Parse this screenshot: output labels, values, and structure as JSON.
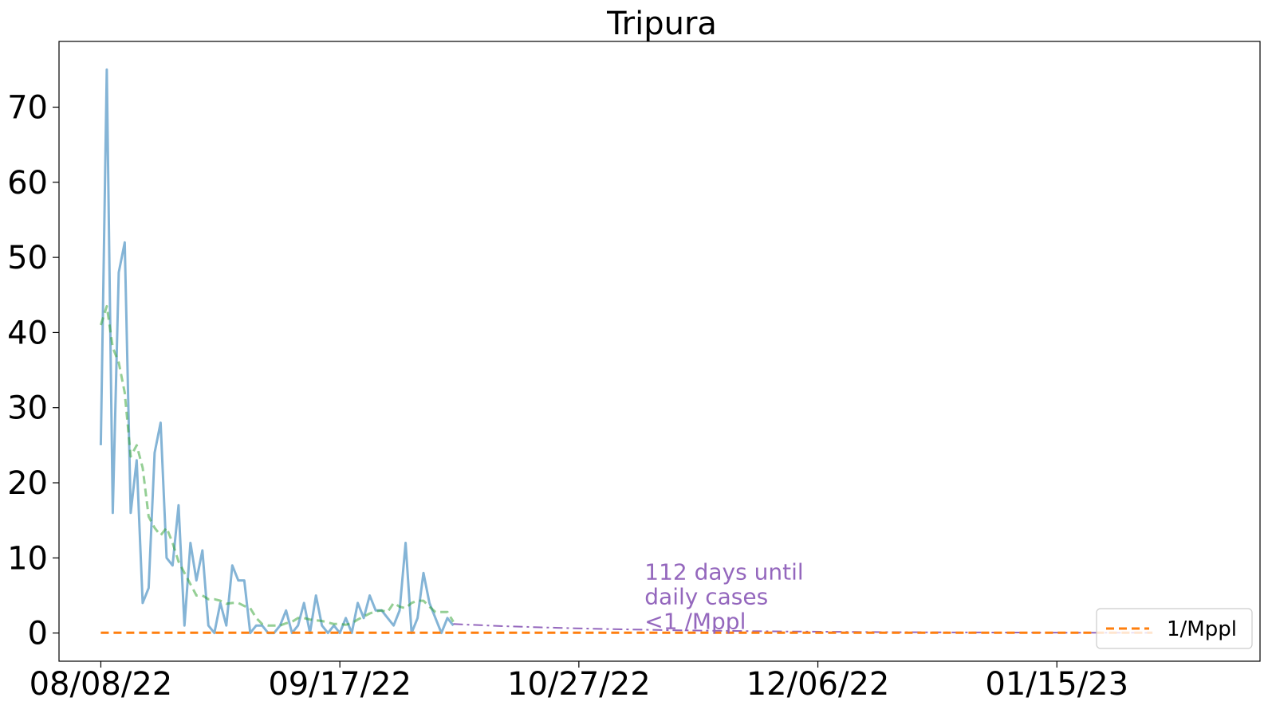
{
  "chart_data": {
    "type": "line",
    "title": "Tripura",
    "xlabel": "",
    "ylabel": "",
    "x_start": "2022-08-08",
    "xlim": [
      "2022-08-01",
      "2023-02-18"
    ],
    "ylim": [
      -3.75,
      78.75
    ],
    "yticks": [
      0,
      10,
      20,
      30,
      40,
      50,
      60,
      70
    ],
    "xticks": [
      "08/08/22",
      "09/17/22",
      "10/27/22",
      "12/06/22",
      "01/15/23"
    ],
    "grid": false,
    "legend": {
      "position": "lower-right",
      "entries": [
        "1/Mppl"
      ]
    },
    "series": [
      {
        "key": "daily",
        "color": "#1f77b4",
        "style": "solid",
        "values": [
          25,
          75,
          16,
          48,
          52,
          16,
          23,
          4,
          6,
          24,
          28,
          10,
          9,
          17,
          1,
          12,
          7,
          11,
          1,
          0,
          4,
          1,
          9,
          7,
          7,
          0,
          1,
          1,
          0,
          0,
          1,
          3,
          0,
          1,
          4,
          0,
          5,
          1,
          0,
          1,
          0,
          2,
          0,
          4,
          2,
          5,
          3,
          3,
          2,
          1,
          3,
          12,
          0,
          2,
          8,
          4,
          2,
          0,
          2,
          1
        ]
      },
      {
        "key": "rolling",
        "color": "#2ca02c",
        "style": "dashed",
        "values": [
          41,
          43.5,
          38,
          36,
          32,
          23.5,
          25,
          22,
          15.5,
          14,
          13,
          14,
          12,
          9.5,
          8,
          6.5,
          5,
          5,
          4.5,
          4.5,
          4.3,
          3.9,
          4,
          4,
          3.6,
          3.3,
          2,
          1.2,
          1,
          1,
          1,
          1.3,
          1.5,
          2,
          2,
          1.8,
          1.7,
          1.6,
          1.4,
          1.2,
          1.2,
          1.1,
          1.3,
          1.8,
          2.2,
          2.6,
          2.9,
          3,
          2.8,
          4,
          3.5,
          3.3,
          4,
          4.3,
          4.3,
          3.5,
          2.8,
          2.8,
          2.8,
          1.5
        ]
      },
      {
        "key": "projection",
        "color": "#9467bd",
        "style": "dashdot",
        "start_day": 59,
        "start_value": 1.2,
        "end_day": 176,
        "end_value": 0.03
      },
      {
        "name": "1/Mppl",
        "color": "#ff7f0e",
        "style": "dashed",
        "value": 0.04,
        "start_day": 0,
        "end_day": 176
      }
    ],
    "annotation": {
      "lines": [
        "112 days until",
        "daily cases",
        "<1 /Mppl"
      ],
      "color": "#9467bd",
      "x": "2022-11-07",
      "y": 8.2
    }
  }
}
